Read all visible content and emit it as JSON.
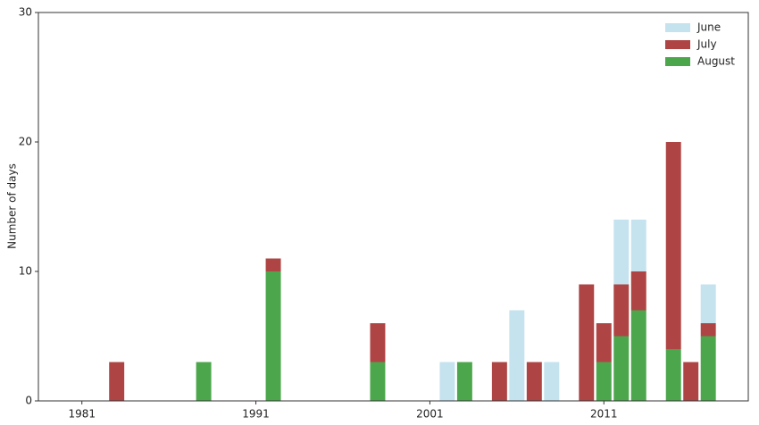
{
  "chart_data": {
    "type": "stacked-bar",
    "y_label": "Number of days",
    "x": [
      1983,
      1988,
      1992,
      1998,
      2002,
      2003,
      2005,
      2006,
      2007,
      2008,
      2010,
      2011,
      2012,
      2013,
      2015,
      2016,
      2017
    ],
    "series": [
      {
        "name": "June",
        "color": "#c5e3ee",
        "values": [
          0,
          0,
          0,
          0,
          3,
          0,
          0,
          7,
          0,
          3,
          0,
          0,
          5,
          4,
          0,
          0,
          3
        ]
      },
      {
        "name": "July",
        "color": "#ae4544",
        "values": [
          3,
          0,
          1,
          3,
          0,
          0,
          3,
          0,
          3,
          0,
          9,
          3,
          4,
          3,
          16,
          3,
          1
        ]
      },
      {
        "name": "August",
        "color": "#4ca64c",
        "values": [
          0,
          3,
          10,
          3,
          0,
          3,
          0,
          0,
          0,
          0,
          0,
          3,
          5,
          7,
          4,
          0,
          5
        ]
      }
    ],
    "xlim": [
      1978.5,
      2019.3
    ],
    "xticks": [
      1981,
      1991,
      2001,
      2011
    ],
    "ylim": [
      0,
      30
    ],
    "yticks": [
      0,
      10,
      20,
      30
    ],
    "legend": "upper-right"
  }
}
